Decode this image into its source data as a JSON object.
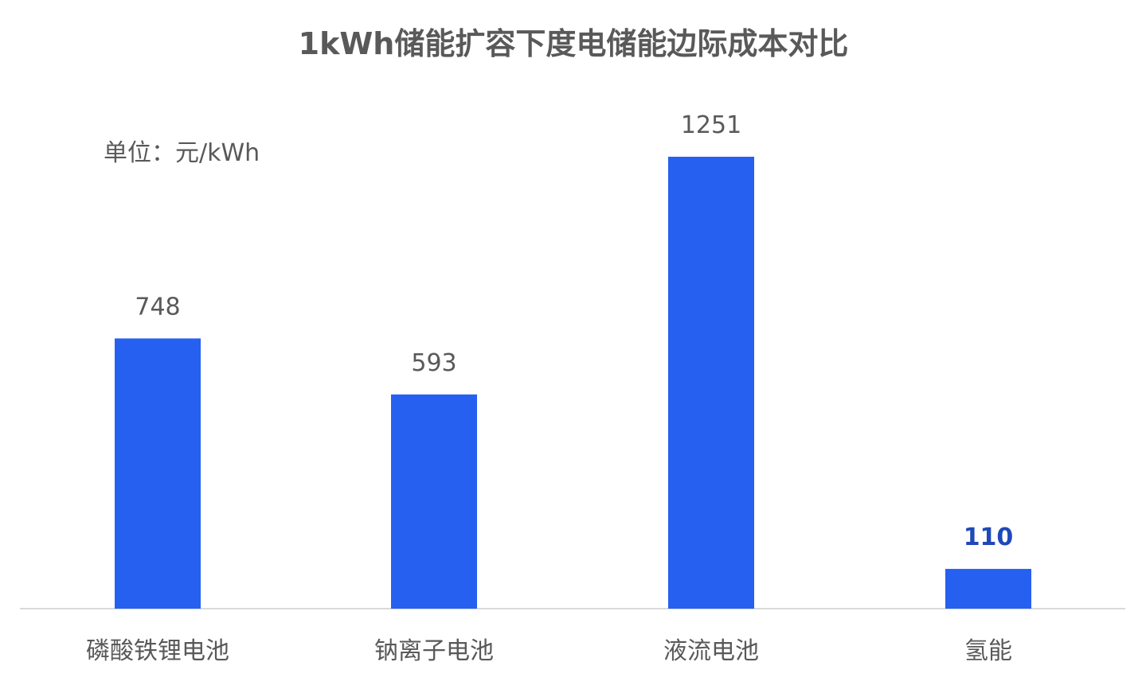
{
  "chart_data": {
    "type": "bar",
    "title": "1kWh储能扩容下度电储能边际成本对比",
    "unit_label": "单位：元/kWh",
    "categories": [
      "磷酸铁锂电池",
      "钠离子电池",
      "液流电池",
      "氢能"
    ],
    "values": [
      748,
      593,
      1251,
      110
    ],
    "data_labels": [
      "748",
      "593",
      "1251",
      "110"
    ],
    "highlight_index": 3,
    "ylim": [
      0,
      1251
    ],
    "grid": false,
    "legend": "none",
    "colors": {
      "bar": "#2560f0",
      "axis": "#d9d9d9",
      "text": "#595959",
      "highlight_label": "#1f49b8"
    }
  }
}
